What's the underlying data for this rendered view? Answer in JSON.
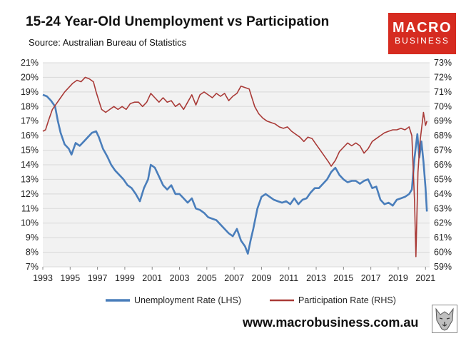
{
  "header": {
    "title": "15-24 Year-Old Unemployment vs Participation",
    "subtitle": "Source: Australian Bureau of Statistics"
  },
  "logo": {
    "line1": "MACRO",
    "line2": "BUSINESS",
    "color": "#d62b20"
  },
  "footer": {
    "url": "www.macrobusiness.com.au"
  },
  "colors": {
    "unemployment": "#4a7ebb",
    "participation": "#a93a37",
    "plot_bg": "#f2f2f2",
    "grid": "#d9d9d9"
  },
  "chart_data": {
    "type": "line",
    "title": "15-24 Year-Old Unemployment vs Participation",
    "x_range": [
      1993,
      2021.3
    ],
    "x_ticks": [
      "1993",
      "1995",
      "1997",
      "1999",
      "2001",
      "2003",
      "2005",
      "2007",
      "2009",
      "2011",
      "2013",
      "2015",
      "2017",
      "2019",
      "2021"
    ],
    "y_left": {
      "range": [
        7,
        21
      ],
      "ticks": [
        "7%",
        "8%",
        "9%",
        "10%",
        "11%",
        "12%",
        "13%",
        "14%",
        "15%",
        "16%",
        "17%",
        "18%",
        "19%",
        "20%",
        "21%"
      ]
    },
    "y_right": {
      "range": [
        59,
        73
      ],
      "ticks": [
        "59%",
        "60%",
        "61%",
        "62%",
        "63%",
        "64%",
        "65%",
        "66%",
        "67%",
        "68%",
        "69%",
        "70%",
        "71%",
        "72%",
        "73%"
      ]
    },
    "series": [
      {
        "name": "Unemployment Rate (LHS)",
        "axis": "left",
        "points": [
          [
            1993.0,
            18.8
          ],
          [
            1993.3,
            18.7
          ],
          [
            1993.6,
            18.4
          ],
          [
            1993.9,
            18.0
          ],
          [
            1994.1,
            17.0
          ],
          [
            1994.3,
            16.2
          ],
          [
            1994.6,
            15.4
          ],
          [
            1994.9,
            15.1
          ],
          [
            1995.1,
            14.7
          ],
          [
            1995.4,
            15.5
          ],
          [
            1995.7,
            15.3
          ],
          [
            1996.0,
            15.6
          ],
          [
            1996.3,
            15.9
          ],
          [
            1996.6,
            16.2
          ],
          [
            1996.9,
            16.3
          ],
          [
            1997.1,
            15.9
          ],
          [
            1997.4,
            15.1
          ],
          [
            1997.7,
            14.6
          ],
          [
            1998.0,
            14.0
          ],
          [
            1998.3,
            13.6
          ],
          [
            1998.6,
            13.3
          ],
          [
            1998.9,
            13.0
          ],
          [
            1999.2,
            12.6
          ],
          [
            1999.5,
            12.4
          ],
          [
            1999.8,
            12.0
          ],
          [
            2000.1,
            11.5
          ],
          [
            2000.4,
            12.4
          ],
          [
            2000.7,
            13.0
          ],
          [
            2000.9,
            14.0
          ],
          [
            2001.2,
            13.8
          ],
          [
            2001.5,
            13.2
          ],
          [
            2001.8,
            12.6
          ],
          [
            2002.1,
            12.3
          ],
          [
            2002.4,
            12.6
          ],
          [
            2002.7,
            12.0
          ],
          [
            2003.0,
            12.0
          ],
          [
            2003.3,
            11.7
          ],
          [
            2003.6,
            11.4
          ],
          [
            2003.9,
            11.7
          ],
          [
            2004.2,
            11.0
          ],
          [
            2004.5,
            10.9
          ],
          [
            2004.8,
            10.7
          ],
          [
            2005.1,
            10.4
          ],
          [
            2005.4,
            10.3
          ],
          [
            2005.7,
            10.2
          ],
          [
            2006.0,
            9.9
          ],
          [
            2006.3,
            9.6
          ],
          [
            2006.6,
            9.3
          ],
          [
            2006.9,
            9.1
          ],
          [
            2007.2,
            9.6
          ],
          [
            2007.5,
            8.8
          ],
          [
            2007.8,
            8.4
          ],
          [
            2008.0,
            7.9
          ],
          [
            2008.2,
            8.8
          ],
          [
            2008.4,
            9.6
          ],
          [
            2008.7,
            11.0
          ],
          [
            2009.0,
            11.8
          ],
          [
            2009.3,
            12.0
          ],
          [
            2009.6,
            11.8
          ],
          [
            2009.9,
            11.6
          ],
          [
            2010.2,
            11.5
          ],
          [
            2010.5,
            11.4
          ],
          [
            2010.8,
            11.5
          ],
          [
            2011.1,
            11.3
          ],
          [
            2011.4,
            11.7
          ],
          [
            2011.7,
            11.3
          ],
          [
            2012.0,
            11.6
          ],
          [
            2012.3,
            11.7
          ],
          [
            2012.6,
            12.1
          ],
          [
            2012.9,
            12.4
          ],
          [
            2013.2,
            12.4
          ],
          [
            2013.5,
            12.7
          ],
          [
            2013.8,
            13.0
          ],
          [
            2014.1,
            13.5
          ],
          [
            2014.4,
            13.8
          ],
          [
            2014.7,
            13.3
          ],
          [
            2015.0,
            13.0
          ],
          [
            2015.3,
            12.8
          ],
          [
            2015.6,
            12.9
          ],
          [
            2015.9,
            12.9
          ],
          [
            2016.2,
            12.7
          ],
          [
            2016.5,
            12.9
          ],
          [
            2016.8,
            13.0
          ],
          [
            2017.1,
            12.4
          ],
          [
            2017.4,
            12.5
          ],
          [
            2017.7,
            11.6
          ],
          [
            2018.0,
            11.3
          ],
          [
            2018.3,
            11.4
          ],
          [
            2018.6,
            11.2
          ],
          [
            2018.9,
            11.6
          ],
          [
            2019.2,
            11.7
          ],
          [
            2019.5,
            11.8
          ],
          [
            2019.8,
            12.0
          ],
          [
            2020.0,
            12.3
          ],
          [
            2020.2,
            14.5
          ],
          [
            2020.4,
            16.1
          ],
          [
            2020.55,
            14.5
          ],
          [
            2020.7,
            15.6
          ],
          [
            2020.85,
            14.2
          ],
          [
            2021.0,
            12.4
          ],
          [
            2021.1,
            10.8
          ]
        ]
      },
      {
        "name": "Participation Rate (RHS)",
        "axis": "right",
        "points": [
          [
            1993.0,
            68.3
          ],
          [
            1993.2,
            68.4
          ],
          [
            1993.4,
            69.0
          ],
          [
            1993.7,
            69.8
          ],
          [
            1994.0,
            70.2
          ],
          [
            1994.3,
            70.6
          ],
          [
            1994.6,
            71.0
          ],
          [
            1994.9,
            71.3
          ],
          [
            1995.2,
            71.6
          ],
          [
            1995.5,
            71.8
          ],
          [
            1995.8,
            71.7
          ],
          [
            1996.1,
            72.0
          ],
          [
            1996.4,
            71.9
          ],
          [
            1996.7,
            71.7
          ],
          [
            1996.9,
            71.0
          ],
          [
            1997.1,
            70.4
          ],
          [
            1997.3,
            69.8
          ],
          [
            1997.6,
            69.6
          ],
          [
            1997.9,
            69.8
          ],
          [
            1998.2,
            70.0
          ],
          [
            1998.5,
            69.8
          ],
          [
            1998.8,
            70.0
          ],
          [
            1999.1,
            69.8
          ],
          [
            1999.4,
            70.2
          ],
          [
            1999.7,
            70.3
          ],
          [
            2000.0,
            70.3
          ],
          [
            2000.3,
            70.0
          ],
          [
            2000.6,
            70.3
          ],
          [
            2000.9,
            70.9
          ],
          [
            2001.2,
            70.6
          ],
          [
            2001.5,
            70.3
          ],
          [
            2001.8,
            70.6
          ],
          [
            2002.1,
            70.3
          ],
          [
            2002.4,
            70.4
          ],
          [
            2002.7,
            70.0
          ],
          [
            2003.0,
            70.2
          ],
          [
            2003.3,
            69.8
          ],
          [
            2003.6,
            70.3
          ],
          [
            2003.9,
            70.8
          ],
          [
            2004.2,
            70.1
          ],
          [
            2004.5,
            70.8
          ],
          [
            2004.8,
            71.0
          ],
          [
            2005.1,
            70.8
          ],
          [
            2005.4,
            70.6
          ],
          [
            2005.7,
            70.9
          ],
          [
            2006.0,
            70.7
          ],
          [
            2006.3,
            70.9
          ],
          [
            2006.6,
            70.4
          ],
          [
            2006.9,
            70.7
          ],
          [
            2007.2,
            70.9
          ],
          [
            2007.5,
            71.4
          ],
          [
            2007.8,
            71.3
          ],
          [
            2008.1,
            71.2
          ],
          [
            2008.3,
            70.6
          ],
          [
            2008.5,
            70.0
          ],
          [
            2008.8,
            69.5
          ],
          [
            2009.1,
            69.2
          ],
          [
            2009.4,
            69.0
          ],
          [
            2009.7,
            68.9
          ],
          [
            2010.0,
            68.8
          ],
          [
            2010.3,
            68.6
          ],
          [
            2010.6,
            68.5
          ],
          [
            2010.9,
            68.6
          ],
          [
            2011.2,
            68.3
          ],
          [
            2011.5,
            68.1
          ],
          [
            2011.8,
            67.9
          ],
          [
            2012.1,
            67.6
          ],
          [
            2012.4,
            67.9
          ],
          [
            2012.7,
            67.8
          ],
          [
            2013.0,
            67.4
          ],
          [
            2013.3,
            67.0
          ],
          [
            2013.6,
            66.6
          ],
          [
            2013.9,
            66.2
          ],
          [
            2014.1,
            65.9
          ],
          [
            2014.4,
            66.3
          ],
          [
            2014.7,
            66.9
          ],
          [
            2015.0,
            67.2
          ],
          [
            2015.3,
            67.5
          ],
          [
            2015.6,
            67.3
          ],
          [
            2015.9,
            67.5
          ],
          [
            2016.2,
            67.3
          ],
          [
            2016.5,
            66.8
          ],
          [
            2016.8,
            67.1
          ],
          [
            2017.1,
            67.6
          ],
          [
            2017.4,
            67.8
          ],
          [
            2017.7,
            68.0
          ],
          [
            2018.0,
            68.2
          ],
          [
            2018.3,
            68.3
          ],
          [
            2018.6,
            68.4
          ],
          [
            2018.9,
            68.4
          ],
          [
            2019.2,
            68.5
          ],
          [
            2019.5,
            68.4
          ],
          [
            2019.8,
            68.6
          ],
          [
            2020.0,
            68.0
          ],
          [
            2020.2,
            63.5
          ],
          [
            2020.3,
            59.7
          ],
          [
            2020.45,
            65.5
          ],
          [
            2020.6,
            67.6
          ],
          [
            2020.75,
            68.8
          ],
          [
            2020.85,
            69.6
          ],
          [
            2021.0,
            68.7
          ],
          [
            2021.1,
            69.0
          ]
        ]
      }
    ],
    "legend": {
      "placement": "bottom",
      "entries": [
        "Unemployment Rate (LHS)",
        "Participation Rate (RHS)"
      ]
    },
    "grid": true
  }
}
